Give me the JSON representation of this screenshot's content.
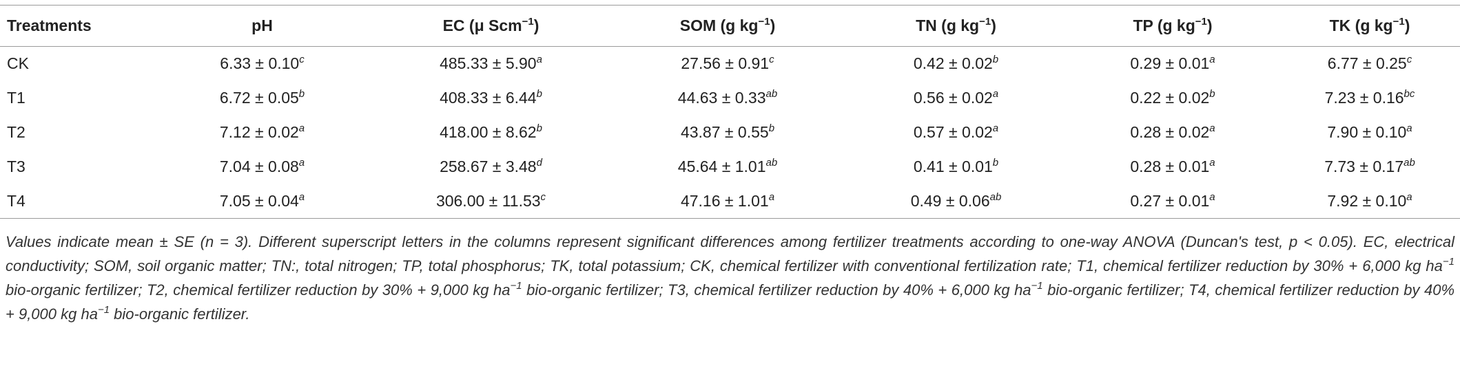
{
  "table": {
    "headers": [
      {
        "text": "Treatments"
      },
      {
        "text": "pH"
      },
      {
        "text": "EC (μ Scm",
        "sup": "−1",
        "tail": ")"
      },
      {
        "text": "SOM (g kg",
        "sup": "−1",
        "tail": ")"
      },
      {
        "text": "TN (g kg",
        "sup": "−1",
        "tail": ")"
      },
      {
        "text": "TP (g kg",
        "sup": "−1",
        "tail": ")"
      },
      {
        "text": "TK (g kg",
        "sup": "−1",
        "tail": ")"
      }
    ],
    "rows": [
      {
        "label": "CK",
        "cells": [
          {
            "value": "6.33 ± 0.10",
            "sup": "c"
          },
          {
            "value": "485.33 ± 5.90",
            "sup": "a"
          },
          {
            "value": "27.56 ± 0.91",
            "sup": "c"
          },
          {
            "value": "0.42 ± 0.02",
            "sup": "b"
          },
          {
            "value": "0.29 ± 0.01",
            "sup": "a"
          },
          {
            "value": "6.77 ± 0.25",
            "sup": "c"
          }
        ]
      },
      {
        "label": "T1",
        "cells": [
          {
            "value": "6.72 ± 0.05",
            "sup": "b"
          },
          {
            "value": "408.33 ± 6.44",
            "sup": "b"
          },
          {
            "value": "44.63 ± 0.33",
            "sup": "ab"
          },
          {
            "value": "0.56 ± 0.02",
            "sup": "a"
          },
          {
            "value": "0.22 ± 0.02",
            "sup": "b"
          },
          {
            "value": "7.23 ± 0.16",
            "sup": "bc"
          }
        ]
      },
      {
        "label": "T2",
        "cells": [
          {
            "value": "7.12 ± 0.02",
            "sup": "a"
          },
          {
            "value": "418.00 ± 8.62",
            "sup": "b"
          },
          {
            "value": "43.87 ± 0.55",
            "sup": "b"
          },
          {
            "value": "0.57 ± 0.02",
            "sup": "a"
          },
          {
            "value": "0.28 ± 0.02",
            "sup": "a"
          },
          {
            "value": "7.90 ± 0.10",
            "sup": "a"
          }
        ]
      },
      {
        "label": "T3",
        "cells": [
          {
            "value": "7.04 ± 0.08",
            "sup": "a"
          },
          {
            "value": "258.67 ± 3.48",
            "sup": "d"
          },
          {
            "value": "45.64 ± 1.01",
            "sup": "ab"
          },
          {
            "value": "0.41 ± 0.01",
            "sup": "b"
          },
          {
            "value": "0.28 ± 0.01",
            "sup": "a"
          },
          {
            "value": "7.73 ± 0.17",
            "sup": "ab"
          }
        ]
      },
      {
        "label": "T4",
        "cells": [
          {
            "value": "7.05 ± 0.04",
            "sup": "a"
          },
          {
            "value": "306.00 ± 11.53",
            "sup": "c"
          },
          {
            "value": "47.16 ± 1.01",
            "sup": "a"
          },
          {
            "value": "0.49 ± 0.06",
            "sup": "ab"
          },
          {
            "value": "0.27 ± 0.01",
            "sup": "a"
          },
          {
            "value": "7.92 ± 0.10",
            "sup": "a"
          }
        ]
      }
    ],
    "footnote": [
      {
        "text": "Values indicate mean ± SE (n = 3). Different superscript letters in the columns represent significant differences among fertilizer treatments according to one-way ANOVA (Duncan's test, p < 0.05). EC, electrical conductivity; SOM, soil organic matter; TN:, total nitrogen; TP, total phosphorus; TK, total potassium; CK, chemical fertilizer with conventional fertilization rate; T1, chemical fertilizer reduction by 30% + 6,000 kg ha"
      },
      {
        "sup": "−1"
      },
      {
        "text": " bio-organic fertilizer; T2, chemical fertilizer reduction by 30% + 9,000 kg ha"
      },
      {
        "sup": "−1"
      },
      {
        "text": " bio-organic fertilizer; T3, chemical fertilizer reduction by 40% + 6,000 kg ha"
      },
      {
        "sup": "−1"
      },
      {
        "text": " bio-organic fertilizer; T4, chemical fertilizer reduction by 40% + 9,000 kg ha"
      },
      {
        "sup": "−1"
      },
      {
        "text": " bio-organic fertilizer."
      }
    ]
  }
}
